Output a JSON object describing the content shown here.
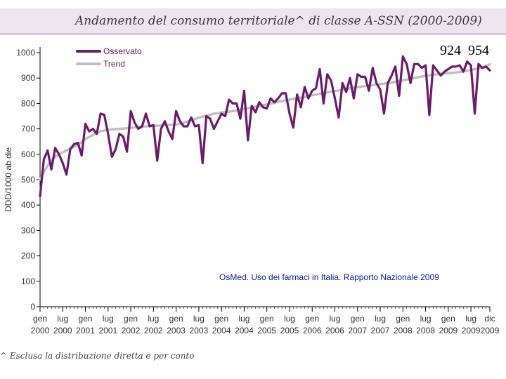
{
  "title": "Andamento del consumo territoriale^ di classe A-SSN (2000-2009)",
  "callout_values": [
    "924",
    "954"
  ],
  "source_note": "OsMed. Uso dei farmaci in Italia. Rapporto Nazionale 2009",
  "footnote": "^ Esclusa la distribuzione diretta e per conto",
  "colors": {
    "observed": "#6a1b6a",
    "trend": "#c0c0c0",
    "axis": "#000000",
    "title_band": "#ece5ee"
  },
  "chart_data": {
    "type": "line",
    "title": "Andamento del consumo territoriale^ di classe A-SSN (2000-2009)",
    "ylabel": "DDD/1000 ab die",
    "xlabel": "",
    "ylim": [
      0,
      1000
    ],
    "yticks": [
      0,
      100,
      200,
      300,
      400,
      500,
      600,
      700,
      800,
      900,
      1000
    ],
    "x_index_range": [
      0,
      119
    ],
    "xticks": [
      {
        "index": 0,
        "label": [
          "gen",
          "2000"
        ]
      },
      {
        "index": 6,
        "label": [
          "lug",
          "2000"
        ]
      },
      {
        "index": 12,
        "label": [
          "gen",
          "2001"
        ]
      },
      {
        "index": 18,
        "label": [
          "lug",
          "2001"
        ]
      },
      {
        "index": 24,
        "label": [
          "gen",
          "2002"
        ]
      },
      {
        "index": 30,
        "label": [
          "lug",
          "2002"
        ]
      },
      {
        "index": 36,
        "label": [
          "gen",
          "2003"
        ]
      },
      {
        "index": 42,
        "label": [
          "lug",
          "2003"
        ]
      },
      {
        "index": 48,
        "label": [
          "gen",
          "2004"
        ]
      },
      {
        "index": 54,
        "label": [
          "lug",
          "2004"
        ]
      },
      {
        "index": 60,
        "label": [
          "gen",
          "2005"
        ]
      },
      {
        "index": 66,
        "label": [
          "lug",
          "2005"
        ]
      },
      {
        "index": 72,
        "label": [
          "gen",
          "2006"
        ]
      },
      {
        "index": 78,
        "label": [
          "lug",
          "2006"
        ]
      },
      {
        "index": 84,
        "label": [
          "gen",
          "2007"
        ]
      },
      {
        "index": 90,
        "label": [
          "lug",
          "2007"
        ]
      },
      {
        "index": 96,
        "label": [
          "gen",
          "2008"
        ]
      },
      {
        "index": 102,
        "label": [
          "lug",
          "2008"
        ]
      },
      {
        "index": 108,
        "label": [
          "gen",
          "2009"
        ]
      },
      {
        "index": 114,
        "label": [
          "lug",
          "2009"
        ]
      },
      {
        "index": 119,
        "label": [
          "dic",
          "2009"
        ]
      }
    ],
    "legend": [
      {
        "name": "Osservato",
        "color": "#6a1b6a"
      },
      {
        "name": "Trend",
        "color": "#c0c0c0"
      }
    ],
    "series": [
      {
        "name": "Osservato",
        "values": [
          435,
          580,
          615,
          540,
          625,
          600,
          565,
          520,
          620,
          640,
          645,
          595,
          720,
          690,
          700,
          680,
          760,
          755,
          680,
          590,
          620,
          680,
          670,
          610,
          770,
          725,
          700,
          710,
          760,
          710,
          715,
          575,
          700,
          730,
          690,
          660,
          770,
          730,
          710,
          710,
          745,
          710,
          715,
          565,
          750,
          740,
          700,
          730,
          760,
          750,
          815,
          800,
          800,
          740,
          850,
          655,
          790,
          765,
          805,
          785,
          780,
          820,
          805,
          820,
          840,
          840,
          760,
          705,
          835,
          785,
          865,
          820,
          850,
          860,
          935,
          800,
          915,
          890,
          820,
          745,
          880,
          845,
          900,
          820,
          915,
          905,
          905,
          850,
          940,
          880,
          855,
          760,
          880,
          910,
          945,
          830,
          985,
          955,
          880,
          955,
          955,
          940,
          950,
          755,
          950,
          930,
          910,
          925,
          935,
          945,
          945,
          950,
          925,
          965,
          950,
          760,
          955,
          940,
          945,
          930
        ]
      },
      {
        "name": "Trend",
        "values": [
          500,
          530,
          555,
          575,
          590,
          600,
          608,
          615,
          622,
          630,
          638,
          648,
          660,
          668,
          676,
          684,
          690,
          694,
          697,
          698,
          699,
          700,
          701,
          702,
          704,
          706,
          708,
          709,
          710,
          711,
          712,
          712,
          713,
          714,
          715,
          716,
          717,
          720,
          724,
          729,
          734,
          739,
          744,
          748,
          752,
          756,
          760,
          762,
          764,
          766,
          768,
          770,
          772,
          775,
          778,
          781,
          784,
          787,
          790,
          793,
          796,
          799,
          802,
          806,
          809,
          812,
          815,
          818,
          821,
          823,
          826,
          829,
          832,
          835,
          838,
          841,
          844,
          846,
          849,
          851,
          854,
          857,
          860,
          862,
          864,
          866,
          868,
          870,
          872,
          874,
          876,
          878,
          880,
          882,
          885,
          888,
          891,
          894,
          897,
          900,
          903,
          906,
          909,
          911,
          913,
          915,
          916,
          918,
          919,
          920,
          922,
          924,
          926,
          929,
          932,
          935,
          938,
          942,
          947,
          954
        ]
      }
    ]
  }
}
